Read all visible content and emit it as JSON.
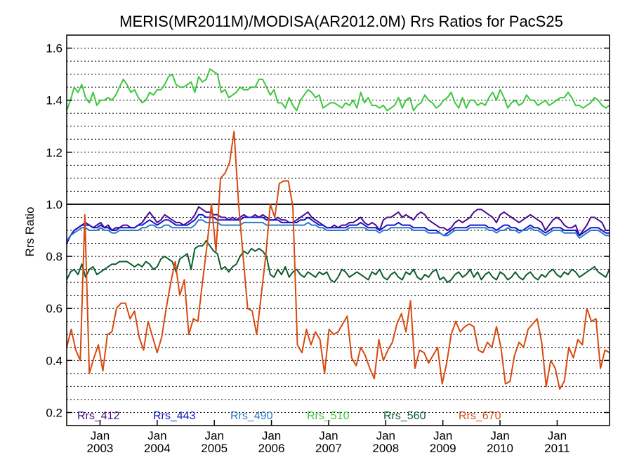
{
  "chart_data": {
    "type": "line",
    "title": "MERIS(MR2011M)/MODISA(AR2012.0M)  Rrs Ratios for PacS25",
    "xlabel": "",
    "ylabel": "Rrs Ratio",
    "ylim": [
      0.15,
      1.65
    ],
    "yticks": [
      "1.6",
      "1.4",
      "1.2",
      "1.0",
      "0.8",
      "0.6",
      "0.4",
      "0.2"
    ],
    "xticks": [
      {
        "month": "Jan",
        "year": "2003"
      },
      {
        "month": "Jan",
        "year": "2004"
      },
      {
        "month": "Jan",
        "year": "2005"
      },
      {
        "month": "Jan",
        "year": "2006"
      },
      {
        "month": "Jan",
        "year": "2007"
      },
      {
        "month": "Jan",
        "year": "2008"
      },
      {
        "month": "Jan",
        "year": "2009"
      },
      {
        "month": "Jan",
        "year": "2010"
      },
      {
        "month": "Jan",
        "year": "2011"
      }
    ],
    "x_start": "2002-06",
    "reference_line": 1.0,
    "grid": "dotted horizontal",
    "legend": "bottom",
    "series": [
      {
        "name": "Rrs_412",
        "color": "#4b0a8c",
        "values": [
          0.85,
          0.88,
          0.9,
          0.91,
          0.92,
          0.93,
          0.92,
          0.91,
          0.92,
          0.93,
          0.91,
          0.92,
          0.9,
          0.91,
          0.91,
          0.92,
          0.92,
          0.91,
          0.91,
          0.92,
          0.93,
          0.95,
          0.97,
          0.95,
          0.93,
          0.94,
          0.96,
          0.95,
          0.94,
          0.93,
          0.93,
          0.92,
          0.93,
          0.94,
          0.96,
          0.99,
          0.98,
          0.97,
          0.97,
          0.96,
          0.96,
          0.95,
          0.95,
          0.94,
          0.95,
          0.94,
          0.95,
          0.96,
          0.95,
          0.95,
          0.96,
          0.95,
          0.96,
          0.95,
          0.94,
          0.94,
          0.95,
          0.94,
          0.94,
          0.93,
          0.93,
          0.94,
          0.95,
          0.96,
          0.97,
          0.95,
          0.94,
          0.93,
          0.92,
          0.91,
          0.91,
          0.92,
          0.91,
          0.92,
          0.92,
          0.93,
          0.93,
          0.94,
          0.95,
          0.93,
          0.92,
          0.93,
          0.92,
          0.9,
          0.94,
          0.95,
          0.95,
          0.96,
          0.97,
          0.95,
          0.96,
          0.95,
          0.94,
          0.96,
          0.97,
          0.96,
          0.94,
          0.93,
          0.92,
          0.91,
          0.91,
          0.9,
          0.91,
          0.93,
          0.94,
          0.93,
          0.94,
          0.95,
          0.97,
          0.98,
          0.98,
          0.97,
          0.96,
          0.95,
          0.93,
          0.96,
          0.97,
          0.96,
          0.95,
          0.94,
          0.93,
          0.94,
          0.95,
          0.96,
          0.95,
          0.94,
          0.93,
          0.9,
          0.92,
          0.94,
          0.95,
          0.94,
          0.92,
          0.91,
          0.91,
          0.92,
          0.88,
          0.9,
          0.92,
          0.95,
          0.95,
          0.94,
          0.93,
          0.9,
          0.9
        ]
      },
      {
        "name": "Rrs_443",
        "color": "#1414d2",
        "values": [
          0.85,
          0.88,
          0.9,
          0.91,
          0.92,
          0.92,
          0.92,
          0.91,
          0.91,
          0.92,
          0.91,
          0.91,
          0.9,
          0.9,
          0.91,
          0.91,
          0.91,
          0.91,
          0.91,
          0.92,
          0.92,
          0.93,
          0.94,
          0.93,
          0.92,
          0.93,
          0.94,
          0.94,
          0.93,
          0.92,
          0.92,
          0.92,
          0.92,
          0.93,
          0.94,
          0.96,
          0.96,
          0.95,
          0.95,
          0.95,
          0.94,
          0.94,
          0.94,
          0.94,
          0.94,
          0.94,
          0.94,
          0.95,
          0.95,
          0.95,
          0.95,
          0.95,
          0.95,
          0.94,
          0.94,
          0.94,
          0.94,
          0.93,
          0.93,
          0.93,
          0.93,
          0.93,
          0.94,
          0.94,
          0.95,
          0.94,
          0.93,
          0.92,
          0.92,
          0.91,
          0.91,
          0.91,
          0.91,
          0.91,
          0.91,
          0.92,
          0.92,
          0.92,
          0.93,
          0.92,
          0.91,
          0.91,
          0.91,
          0.9,
          0.91,
          0.92,
          0.92,
          0.92,
          0.93,
          0.92,
          0.92,
          0.92,
          0.91,
          0.91,
          0.91,
          0.91,
          0.9,
          0.9,
          0.9,
          0.89,
          0.88,
          0.89,
          0.9,
          0.91,
          0.91,
          0.91,
          0.91,
          0.92,
          0.92,
          0.92,
          0.92,
          0.92,
          0.91,
          0.91,
          0.9,
          0.91,
          0.92,
          0.92,
          0.91,
          0.91,
          0.9,
          0.9,
          0.91,
          0.92,
          0.91,
          0.91,
          0.9,
          0.89,
          0.9,
          0.91,
          0.91,
          0.91,
          0.9,
          0.9,
          0.9,
          0.9,
          0.88,
          0.89,
          0.9,
          0.91,
          0.91,
          0.91,
          0.9,
          0.89,
          0.89
        ]
      },
      {
        "name": "Rrs_490",
        "color": "#2e7bc4",
        "values": [
          0.86,
          0.88,
          0.89,
          0.9,
          0.91,
          0.91,
          0.9,
          0.9,
          0.9,
          0.91,
          0.9,
          0.9,
          0.89,
          0.89,
          0.9,
          0.9,
          0.9,
          0.9,
          0.9,
          0.9,
          0.91,
          0.91,
          0.92,
          0.92,
          0.91,
          0.91,
          0.92,
          0.92,
          0.91,
          0.91,
          0.91,
          0.91,
          0.91,
          0.91,
          0.92,
          0.94,
          0.94,
          0.93,
          0.93,
          0.93,
          0.93,
          0.92,
          0.92,
          0.92,
          0.92,
          0.92,
          0.92,
          0.93,
          0.93,
          0.93,
          0.93,
          0.93,
          0.93,
          0.92,
          0.92,
          0.92,
          0.92,
          0.92,
          0.92,
          0.92,
          0.92,
          0.92,
          0.92,
          0.92,
          0.93,
          0.92,
          0.92,
          0.91,
          0.91,
          0.9,
          0.9,
          0.9,
          0.9,
          0.9,
          0.9,
          0.91,
          0.91,
          0.91,
          0.91,
          0.91,
          0.9,
          0.9,
          0.9,
          0.89,
          0.9,
          0.9,
          0.91,
          0.91,
          0.91,
          0.91,
          0.91,
          0.91,
          0.9,
          0.9,
          0.9,
          0.9,
          0.89,
          0.89,
          0.89,
          0.89,
          0.88,
          0.88,
          0.89,
          0.9,
          0.9,
          0.9,
          0.9,
          0.91,
          0.91,
          0.91,
          0.91,
          0.91,
          0.9,
          0.9,
          0.89,
          0.9,
          0.9,
          0.91,
          0.9,
          0.9,
          0.89,
          0.9,
          0.9,
          0.91,
          0.9,
          0.9,
          0.89,
          0.88,
          0.89,
          0.9,
          0.9,
          0.9,
          0.89,
          0.89,
          0.89,
          0.89,
          0.87,
          0.88,
          0.89,
          0.9,
          0.9,
          0.9,
          0.89,
          0.88,
          0.88
        ]
      },
      {
        "name": "Rrs_510",
        "color": "#3cc83c",
        "values": [
          1.36,
          1.4,
          1.45,
          1.43,
          1.46,
          1.41,
          1.39,
          1.43,
          1.38,
          1.4,
          1.4,
          1.41,
          1.4,
          1.42,
          1.45,
          1.48,
          1.46,
          1.43,
          1.44,
          1.41,
          1.39,
          1.4,
          1.43,
          1.42,
          1.44,
          1.44,
          1.46,
          1.49,
          1.5,
          1.46,
          1.45,
          1.45,
          1.46,
          1.47,
          1.43,
          1.49,
          1.47,
          1.48,
          1.52,
          1.51,
          1.5,
          1.43,
          1.44,
          1.41,
          1.42,
          1.43,
          1.45,
          1.44,
          1.44,
          1.45,
          1.45,
          1.48,
          1.48,
          1.45,
          1.42,
          1.44,
          1.39,
          1.39,
          1.37,
          1.41,
          1.38,
          1.36,
          1.4,
          1.42,
          1.44,
          1.43,
          1.41,
          1.42,
          1.37,
          1.38,
          1.39,
          1.39,
          1.38,
          1.37,
          1.39,
          1.38,
          1.4,
          1.37,
          1.43,
          1.39,
          1.41,
          1.38,
          1.38,
          1.37,
          1.38,
          1.36,
          1.37,
          1.38,
          1.41,
          1.37,
          1.4,
          1.41,
          1.36,
          1.38,
          1.39,
          1.42,
          1.4,
          1.39,
          1.37,
          1.38,
          1.4,
          1.41,
          1.43,
          1.39,
          1.37,
          1.41,
          1.37,
          1.4,
          1.4,
          1.38,
          1.39,
          1.38,
          1.41,
          1.43,
          1.4,
          1.44,
          1.41,
          1.37,
          1.39,
          1.4,
          1.38,
          1.39,
          1.42,
          1.4,
          1.4,
          1.38,
          1.39,
          1.4,
          1.38,
          1.39,
          1.4,
          1.41,
          1.41,
          1.43,
          1.41,
          1.38,
          1.38,
          1.37,
          1.38,
          1.39,
          1.41,
          1.4,
          1.38,
          1.37,
          1.38
        ]
      },
      {
        "name": "Rrs_560",
        "color": "#0d5c2e",
        "values": [
          0.71,
          0.74,
          0.75,
          0.73,
          0.77,
          0.72,
          0.75,
          0.76,
          0.73,
          0.74,
          0.75,
          0.76,
          0.77,
          0.77,
          0.78,
          0.78,
          0.78,
          0.77,
          0.76,
          0.77,
          0.76,
          0.78,
          0.77,
          0.75,
          0.76,
          0.79,
          0.8,
          0.79,
          0.78,
          0.74,
          0.79,
          0.8,
          0.81,
          0.75,
          0.83,
          0.84,
          0.84,
          0.86,
          0.84,
          0.82,
          0.81,
          0.75,
          0.76,
          0.74,
          0.76,
          0.77,
          0.8,
          0.82,
          0.81,
          0.83,
          0.82,
          0.83,
          0.82,
          0.8,
          0.73,
          0.72,
          0.75,
          0.73,
          0.76,
          0.72,
          0.74,
          0.75,
          0.73,
          0.72,
          0.74,
          0.73,
          0.72,
          0.74,
          0.73,
          0.74,
          0.71,
          0.7,
          0.72,
          0.75,
          0.74,
          0.72,
          0.73,
          0.74,
          0.73,
          0.72,
          0.71,
          0.74,
          0.73,
          0.75,
          0.72,
          0.71,
          0.73,
          0.74,
          0.72,
          0.71,
          0.74,
          0.73,
          0.75,
          0.72,
          0.71,
          0.73,
          0.72,
          0.74,
          0.75,
          0.71,
          0.72,
          0.7,
          0.71,
          0.73,
          0.74,
          0.72,
          0.73,
          0.75,
          0.72,
          0.74,
          0.71,
          0.73,
          0.74,
          0.72,
          0.71,
          0.74,
          0.73,
          0.71,
          0.72,
          0.74,
          0.72,
          0.71,
          0.73,
          0.74,
          0.72,
          0.71,
          0.73,
          0.72,
          0.74,
          0.75,
          0.73,
          0.72,
          0.74,
          0.73,
          0.75,
          0.74,
          0.72,
          0.73,
          0.74,
          0.75,
          0.76,
          0.74,
          0.73,
          0.72,
          0.75
        ]
      },
      {
        "name": "Rrs_670",
        "color": "#d84a10",
        "values": [
          0.45,
          0.52,
          0.44,
          0.4,
          0.96,
          0.35,
          0.41,
          0.46,
          0.36,
          0.5,
          0.51,
          0.6,
          0.62,
          0.62,
          0.56,
          0.59,
          0.49,
          0.44,
          0.55,
          0.49,
          0.43,
          0.49,
          0.6,
          0.7,
          0.78,
          0.65,
          0.71,
          0.5,
          0.56,
          0.55,
          0.7,
          0.84,
          1.0,
          0.82,
          1.1,
          1.12,
          1.16,
          1.28,
          1.0,
          0.8,
          0.6,
          0.59,
          0.5,
          0.65,
          0.8,
          1.0,
          0.95,
          1.08,
          1.09,
          1.09,
          0.99,
          0.46,
          0.43,
          0.52,
          0.46,
          0.51,
          0.48,
          0.35,
          0.52,
          0.5,
          0.51,
          0.54,
          0.57,
          0.41,
          0.38,
          0.45,
          0.42,
          0.37,
          0.33,
          0.48,
          0.4,
          0.44,
          0.47,
          0.54,
          0.58,
          0.51,
          0.63,
          0.37,
          0.44,
          0.43,
          0.39,
          0.42,
          0.45,
          0.31,
          0.39,
          0.5,
          0.55,
          0.51,
          0.53,
          0.54,
          0.53,
          0.44,
          0.43,
          0.47,
          0.45,
          0.53,
          0.45,
          0.31,
          0.32,
          0.42,
          0.47,
          0.45,
          0.52,
          0.54,
          0.56,
          0.47,
          0.3,
          0.4,
          0.37,
          0.29,
          0.32,
          0.45,
          0.41,
          0.48,
          0.46,
          0.6,
          0.55,
          0.56,
          0.37,
          0.44,
          0.43
        ]
      }
    ]
  }
}
